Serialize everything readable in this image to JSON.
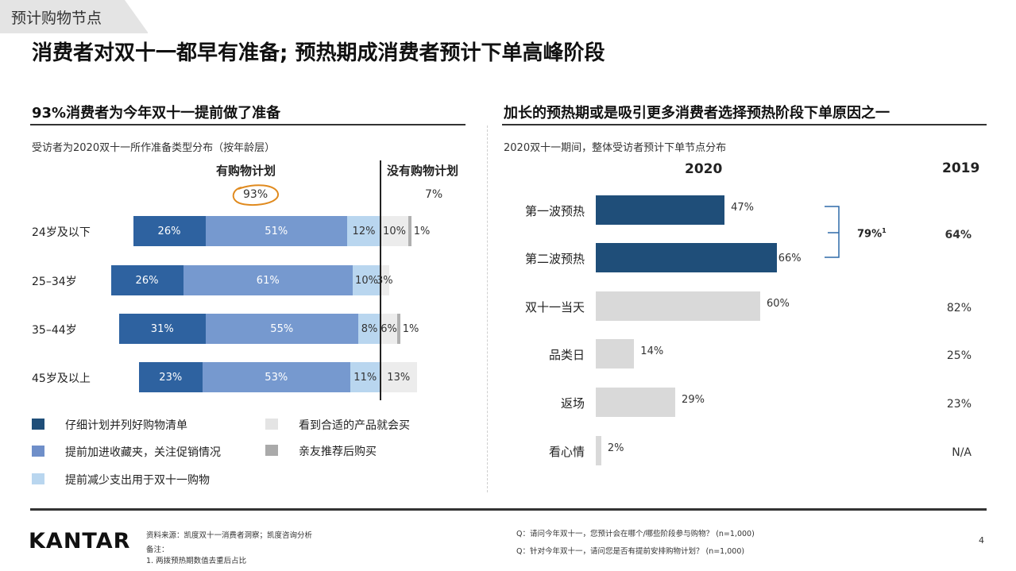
{
  "section_tag": "预计购物节点",
  "page_title": "消费者对双十一都早有准备; 预热期成消费者预计下单高峰阶段",
  "left": {
    "title": "93%消费者为今年双十一提前做了准备",
    "subtitle": "受访者为2020双十一所作准备类型分布（按年龄层）",
    "plan_label": "有购物计划",
    "no_plan_label": "没有购物计划",
    "plan_total": "93%",
    "no_plan_total": "7%",
    "rows": [
      {
        "age": "24岁及以下",
        "values": [
          26,
          51,
          12,
          10,
          1
        ],
        "labels": [
          "26%",
          "51%",
          "12%",
          "10%",
          "1%"
        ]
      },
      {
        "age": "25–34岁",
        "values": [
          26,
          61,
          10,
          3,
          0
        ],
        "labels": [
          "26%",
          "61%",
          "10%",
          "3%",
          ""
        ]
      },
      {
        "age": "35–44岁",
        "values": [
          31,
          55,
          8,
          6,
          1
        ],
        "labels": [
          "31%",
          "55%",
          "8%",
          "6%",
          "1%"
        ]
      },
      {
        "age": "45岁及以上",
        "values": [
          23,
          53,
          11,
          13,
          0
        ],
        "labels": [
          "23%",
          "53%",
          "11%",
          "13%",
          ""
        ]
      }
    ],
    "legend": [
      {
        "label": "仔细计划并列好购物清单",
        "color": "#1f4e79"
      },
      {
        "label": "提前加进收藏夹，关注促销情况",
        "color": "#6f8fc9"
      },
      {
        "label": "提前减少支出用于双十一购物",
        "color": "#b9d6ef"
      },
      {
        "label": "看到合适的产品就会买",
        "color": "#e4e4e4"
      },
      {
        "label": "亲友推荐后购买",
        "color": "#aaaaaa"
      }
    ],
    "colors": {
      "dark_blue": "#2e62a0",
      "mid_blue": "#7699cf",
      "light_blue": "#b9d6ef",
      "light_gray": "#ececec",
      "mid_gray": "#b0b0b0",
      "circle": "#e08a1e"
    }
  },
  "right": {
    "title": "加长的预热期或是吸引更多消费者选择预热阶段下单原因之一",
    "subtitle": "2020双十一期间，整体受访者预计下单节点分布",
    "year_2020": "2020",
    "year_2019": "2019",
    "bracket_label": "79%",
    "bracket_sup": "1",
    "chart_data": {
      "type": "bar",
      "orientation": "horizontal",
      "categories": [
        "第一波预热",
        "第二波预热",
        "双十一当天",
        "品类日",
        "返场",
        "看心情"
      ],
      "series": [
        {
          "name": "2020",
          "values": [
            47,
            66,
            60,
            14,
            29,
            2
          ]
        }
      ],
      "value_labels": [
        "47%",
        "66%",
        "60%",
        "14%",
        "29%",
        "2%"
      ],
      "values_2019": [
        "64%",
        "",
        "82%",
        "25%",
        "23%",
        "N/A"
      ],
      "bar_colors": [
        "#1f4e79",
        "#1f4e79",
        "#d9d9d9",
        "#d9d9d9",
        "#d9d9d9",
        "#d9d9d9"
      ],
      "xlim": [
        0,
        100
      ]
    }
  },
  "footer": {
    "logo": "KANTAR",
    "source": "资料来源：凯度双十一消费者洞察；凯度咨询分析",
    "notes_label": "备注：",
    "note_1": "1.    两拨预热期数值去重后占比",
    "q1": "Q：请问今年双十一，您预计会在哪个/哪些阶段参与购物？ (n=1,000)",
    "q2": "Q：针对今年双十一，请问您是否有提前安排购物计划？ (n=1,000)",
    "page_number": "4"
  }
}
